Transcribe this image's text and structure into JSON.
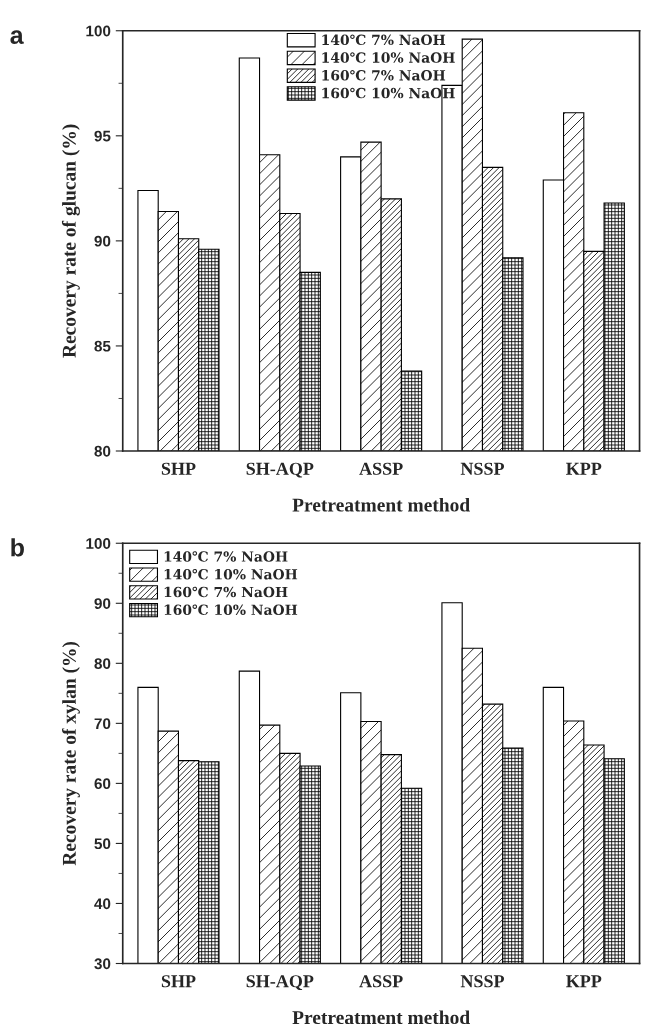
{
  "chart_data": [
    {
      "type": "bar",
      "ylabel": "Recovery rate of glucan (%)",
      "xlabel": "Pretreatment method",
      "annotations": [
        "a"
      ],
      "categories": [
        "SHP",
        "SH-AQP",
        "ASSP",
        "NSSP",
        "KPP"
      ],
      "series": [
        {
          "name": "140℃ 7% NaOH",
          "color": "#ffffff",
          "values": [
            92.4,
            98.7,
            94.0,
            97.4,
            92.9
          ]
        },
        {
          "name": "140℃ 10% NaOH",
          "color": "#000000",
          "values": [
            91.4,
            94.1,
            94.7,
            99.6,
            96.1
          ]
        },
        {
          "name": "160℃ 7% NaOH",
          "color": "#000000",
          "values": [
            90.1,
            91.3,
            92.0,
            93.5,
            89.5
          ]
        },
        {
          "name": "160℃ 10% NaOH",
          "color": "#000000",
          "values": [
            89.6,
            88.5,
            83.8,
            89.2,
            91.8
          ]
        }
      ],
      "ylim": [
        80,
        100
      ],
      "yticks": [
        80,
        85,
        90,
        95,
        100
      ],
      "legend": "top",
      "grid": false
    },
    {
      "type": "bar",
      "ylabel": "Recovery rate of xylan (%)",
      "xlabel": "Pretreatment method",
      "annotations": [
        "b"
      ],
      "categories": [
        "SHP",
        "SH-AQP",
        "ASSP",
        "NSSP",
        "KPP"
      ],
      "series": [
        {
          "name": "140℃ 7% NaOH",
          "color": "#ffffff",
          "values": [
            76.0,
            78.7,
            75.1,
            90.1,
            76.0
          ]
        },
        {
          "name": "140℃ 10% NaOH",
          "color": "#000000",
          "values": [
            68.7,
            69.7,
            70.3,
            82.5,
            70.4
          ]
        },
        {
          "name": "160℃ 7% NaOH",
          "color": "#000000",
          "values": [
            63.8,
            65.0,
            64.8,
            73.2,
            66.4
          ]
        },
        {
          "name": "160℃ 10% NaOH",
          "color": "#000000",
          "values": [
            63.6,
            62.9,
            59.2,
            65.9,
            64.1
          ]
        }
      ],
      "ylim": [
        30,
        100
      ],
      "yticks": [
        30,
        40,
        50,
        60,
        70,
        80,
        90,
        100
      ],
      "legend": "top left",
      "grid": false
    }
  ]
}
